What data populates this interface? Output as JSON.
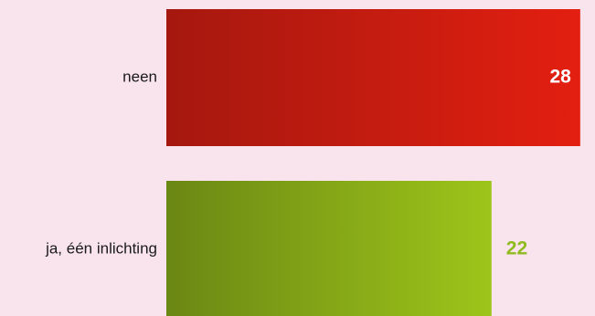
{
  "chart_data": {
    "type": "bar",
    "orientation": "horizontal",
    "categories": [
      "neen",
      "ja, één inlichting"
    ],
    "values": [
      28,
      22
    ],
    "title": "",
    "xlabel": "",
    "ylabel": "",
    "xlim": [
      0,
      29
    ],
    "grid": false,
    "legend": "none",
    "colors": [
      {
        "from": "#a5180f",
        "to": "#e31f10",
        "label": "#ffffff"
      },
      {
        "from": "#6b8714",
        "to": "#9dc51a",
        "label": "#8fbb1f"
      }
    ]
  }
}
